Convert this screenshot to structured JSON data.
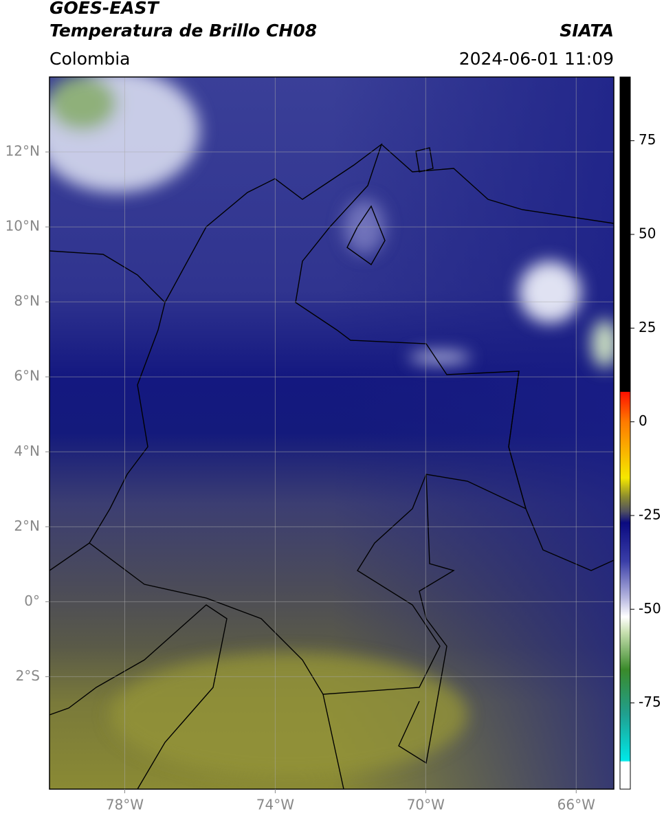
{
  "header": {
    "title": "GOES-EAST",
    "subtitle": "Temperatura de Brillo CH08",
    "source": "SIATA",
    "region": "Colombia",
    "datetime": "2024-06-01 11:09"
  },
  "map": {
    "xlim": [
      -80,
      -65
    ],
    "ylim": [
      -5,
      14
    ],
    "xticks": [
      {
        "value": -78,
        "label": "78°W"
      },
      {
        "value": -74,
        "label": "74°W"
      },
      {
        "value": -70,
        "label": "70°W"
      },
      {
        "value": -66,
        "label": "66°W"
      }
    ],
    "yticks": [
      {
        "value": 12,
        "label": "12°N"
      },
      {
        "value": 10,
        "label": "10°N"
      },
      {
        "value": 8,
        "label": "8°N"
      },
      {
        "value": 6,
        "label": "6°N"
      },
      {
        "value": 4,
        "label": "4°N"
      },
      {
        "value": 2,
        "label": "2°N"
      },
      {
        "value": 0,
        "label": "0°"
      },
      {
        "value": -2,
        "label": "2°S"
      }
    ],
    "grid": true
  },
  "colorbar": {
    "lim": [
      -98,
      92
    ],
    "ticks": [
      75,
      50,
      25,
      0,
      -25,
      -50,
      -75
    ]
  }
}
